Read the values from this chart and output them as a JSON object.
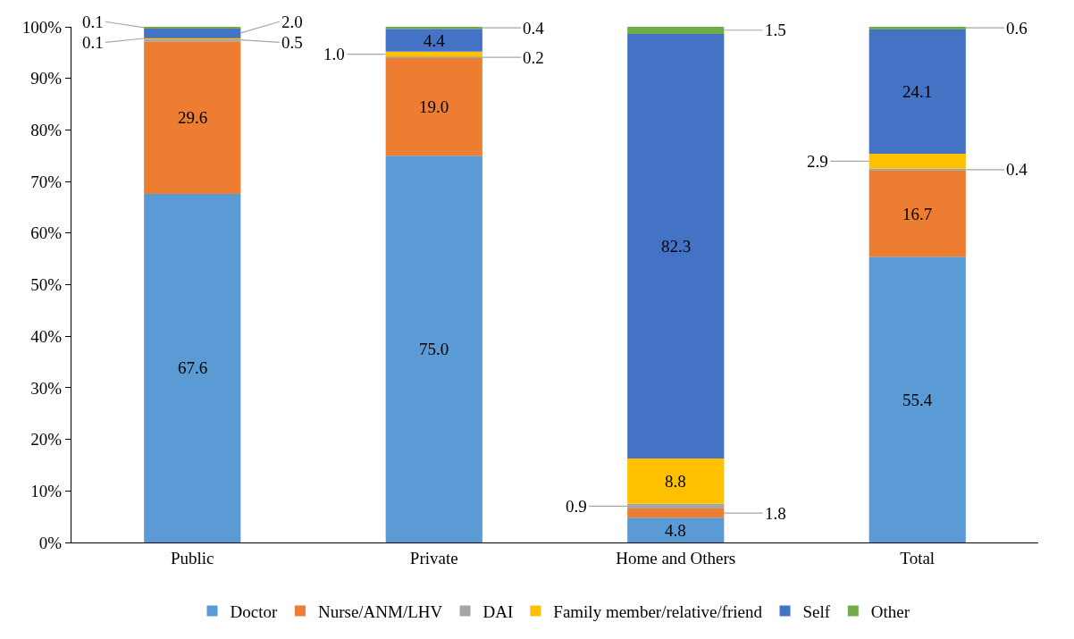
{
  "chart_data": {
    "type": "bar",
    "stacked": true,
    "categories": [
      "Public",
      "Private",
      "Home and Others",
      "Total"
    ],
    "series": [
      {
        "name": "Doctor",
        "color": "#5b9bd5",
        "values": [
          67.6,
          75.0,
          4.8,
          55.4
        ],
        "value_labels": [
          "67.6",
          "75.0",
          "4.8",
          "55.4"
        ]
      },
      {
        "name": "Nurse/ANM/LHV",
        "color": "#ed7d31",
        "values": [
          29.6,
          19.0,
          1.8,
          16.7
        ],
        "value_labels": [
          "29.6",
          "19.0",
          "1.8",
          "16.7"
        ]
      },
      {
        "name": "DAI",
        "color": "#a5a5a5",
        "values": [
          0.5,
          0.2,
          0.9,
          0.4
        ],
        "value_labels": [
          "0.5",
          "0.2",
          "0.9",
          "0.4"
        ]
      },
      {
        "name": "Family member/relative/friend",
        "color": "#ffc000",
        "values": [
          0.1,
          1.0,
          8.8,
          2.9
        ],
        "value_labels": [
          "0.1",
          "1.0",
          "8.8",
          "2.9"
        ]
      },
      {
        "name": "Self",
        "color": "#4472c4",
        "values": [
          2.0,
          4.4,
          82.3,
          24.1
        ],
        "value_labels": [
          "2.0",
          "4.4",
          "82.3",
          "24.1"
        ]
      },
      {
        "name": "Other",
        "color": "#70ad47",
        "values": [
          0.1,
          0.4,
          1.5,
          0.6
        ],
        "value_labels": [
          "0.1",
          "0.4",
          "1.5",
          "0.6"
        ]
      }
    ],
    "ylim": [
      0,
      100
    ],
    "yticks": [
      {
        "value": 0,
        "label": "0%"
      },
      {
        "value": 10,
        "label": "10%"
      },
      {
        "value": 20,
        "label": "20%"
      },
      {
        "value": 30,
        "label": "30%"
      },
      {
        "value": 40,
        "label": "40%"
      },
      {
        "value": 50,
        "label": "50%"
      },
      {
        "value": 60,
        "label": "60%"
      },
      {
        "value": 70,
        "label": "70%"
      },
      {
        "value": 80,
        "label": "80%"
      },
      {
        "value": 90,
        "label": "90%"
      },
      {
        "value": 100,
        "label": "100%"
      }
    ],
    "legend": "bottom"
  }
}
